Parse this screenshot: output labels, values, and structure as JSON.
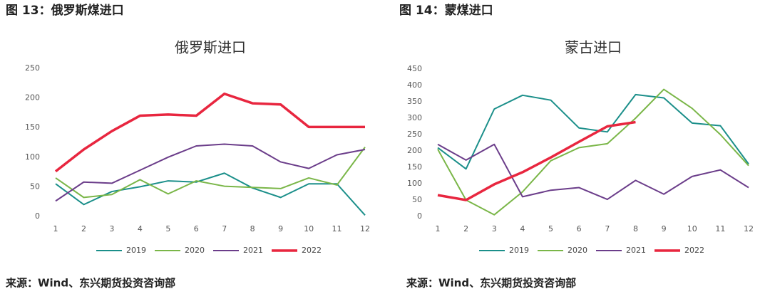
{
  "chart_data": [
    {
      "type": "line",
      "caption": "图 13：俄罗斯煤进口",
      "title": "俄罗斯进口",
      "source": "来源：Wind、东兴期货投资咨询部",
      "categories": [
        "1",
        "2",
        "3",
        "4",
        "5",
        "6",
        "7",
        "8",
        "9",
        "10",
        "11",
        "12"
      ],
      "ylim": [
        0,
        250
      ],
      "yticks": [
        0,
        50,
        100,
        150,
        200,
        250
      ],
      "grid": false,
      "series": [
        {
          "name": "2019",
          "color": "#1b8f8a",
          "values": [
            55,
            20,
            42,
            50,
            60,
            58,
            73,
            48,
            32,
            55,
            55,
            2
          ]
        },
        {
          "name": "2020",
          "color": "#7ab648",
          "values": [
            65,
            32,
            37,
            62,
            38,
            60,
            51,
            49,
            47,
            65,
            53,
            117
          ]
        },
        {
          "name": "2021",
          "color": "#6b3d8a",
          "values": [
            26,
            58,
            56,
            78,
            100,
            119,
            122,
            119,
            92,
            81,
            104,
            113
          ]
        },
        {
          "name": "2022",
          "color": "#e8263f",
          "values": [
            76,
            113,
            144,
            170,
            172,
            170,
            207,
            191,
            189,
            151,
            151,
            151
          ]
        }
      ]
    },
    {
      "type": "line",
      "caption": "图 14：蒙煤进口",
      "title": "蒙古进口",
      "source": "来源：Wind、东兴期货投资咨询部",
      "categories": [
        "1",
        "2",
        "3",
        "4",
        "5",
        "6",
        "7",
        "8",
        "9",
        "10",
        "11",
        "12"
      ],
      "ylim": [
        0,
        450
      ],
      "yticks": [
        0,
        50,
        100,
        150,
        200,
        250,
        300,
        350,
        400,
        450
      ],
      "grid": false,
      "series": [
        {
          "name": "2019",
          "color": "#1b8f8a",
          "values": [
            210,
            145,
            328,
            370,
            355,
            270,
            258,
            372,
            362,
            285,
            277,
            160
          ]
        },
        {
          "name": "2020",
          "color": "#7ab648",
          "values": [
            205,
            50,
            5,
            75,
            170,
            210,
            222,
            300,
            388,
            330,
            250,
            155
          ]
        },
        {
          "name": "2021",
          "color": "#6b3d8a",
          "values": [
            220,
            172,
            220,
            60,
            80,
            88,
            52,
            110,
            68,
            122,
            142,
            88
          ]
        },
        {
          "name": "2022",
          "color": "#e8263f",
          "values": [
            65,
            50,
            98,
            135,
            180,
            228,
            275,
            288,
            null,
            null,
            null,
            null
          ]
        }
      ]
    }
  ]
}
